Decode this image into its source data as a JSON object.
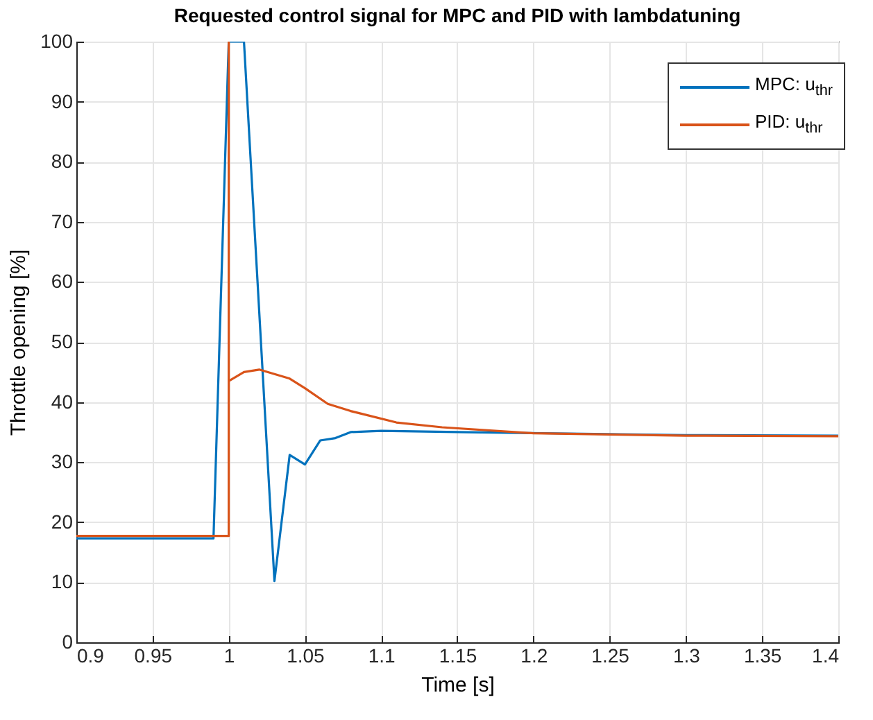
{
  "chart_data": {
    "type": "line",
    "title": "Requested control signal for MPC and PID with lambdatuning",
    "xlabel": "Time [s]",
    "ylabel": "Throttle opening [%]",
    "xlim": [
      0.9,
      1.4
    ],
    "xticks": [
      0.9,
      0.95,
      1,
      1.05,
      1.1,
      1.15,
      1.2,
      1.25,
      1.3,
      1.35,
      1.4
    ],
    "ylim": [
      0,
      100
    ],
    "yticks": [
      0,
      10,
      20,
      30,
      40,
      50,
      60,
      70,
      80,
      90,
      100
    ],
    "grid": true,
    "legend": "top right",
    "series": [
      {
        "name": "MPC: u$_{thr}$",
        "color": "#0072bd",
        "x": [
          0.9,
          0.99,
          1.0,
          1.01,
          1.03,
          1.04,
          1.05,
          1.06,
          1.07,
          1.08,
          1.1,
          1.15,
          1.3,
          1.4
        ],
        "values": [
          17.3,
          17.3,
          100,
          100,
          10.2,
          31.2,
          29.6,
          33.6,
          34.0,
          35.0,
          35.2,
          35.0,
          34.5,
          34.4
        ]
      },
      {
        "name": "PID: u$_{thr}$",
        "color": "#d95319",
        "x": [
          0.9,
          1.0,
          1.0,
          1.0,
          1.01,
          1.02,
          1.04,
          1.05,
          1.065,
          1.08,
          1.11,
          1.14,
          1.2,
          1.3,
          1.4
        ],
        "values": [
          17.7,
          17.7,
          100,
          43.5,
          45.0,
          45.4,
          43.9,
          42.3,
          39.7,
          38.5,
          36.6,
          35.8,
          34.8,
          34.4,
          34.3
        ]
      }
    ]
  }
}
